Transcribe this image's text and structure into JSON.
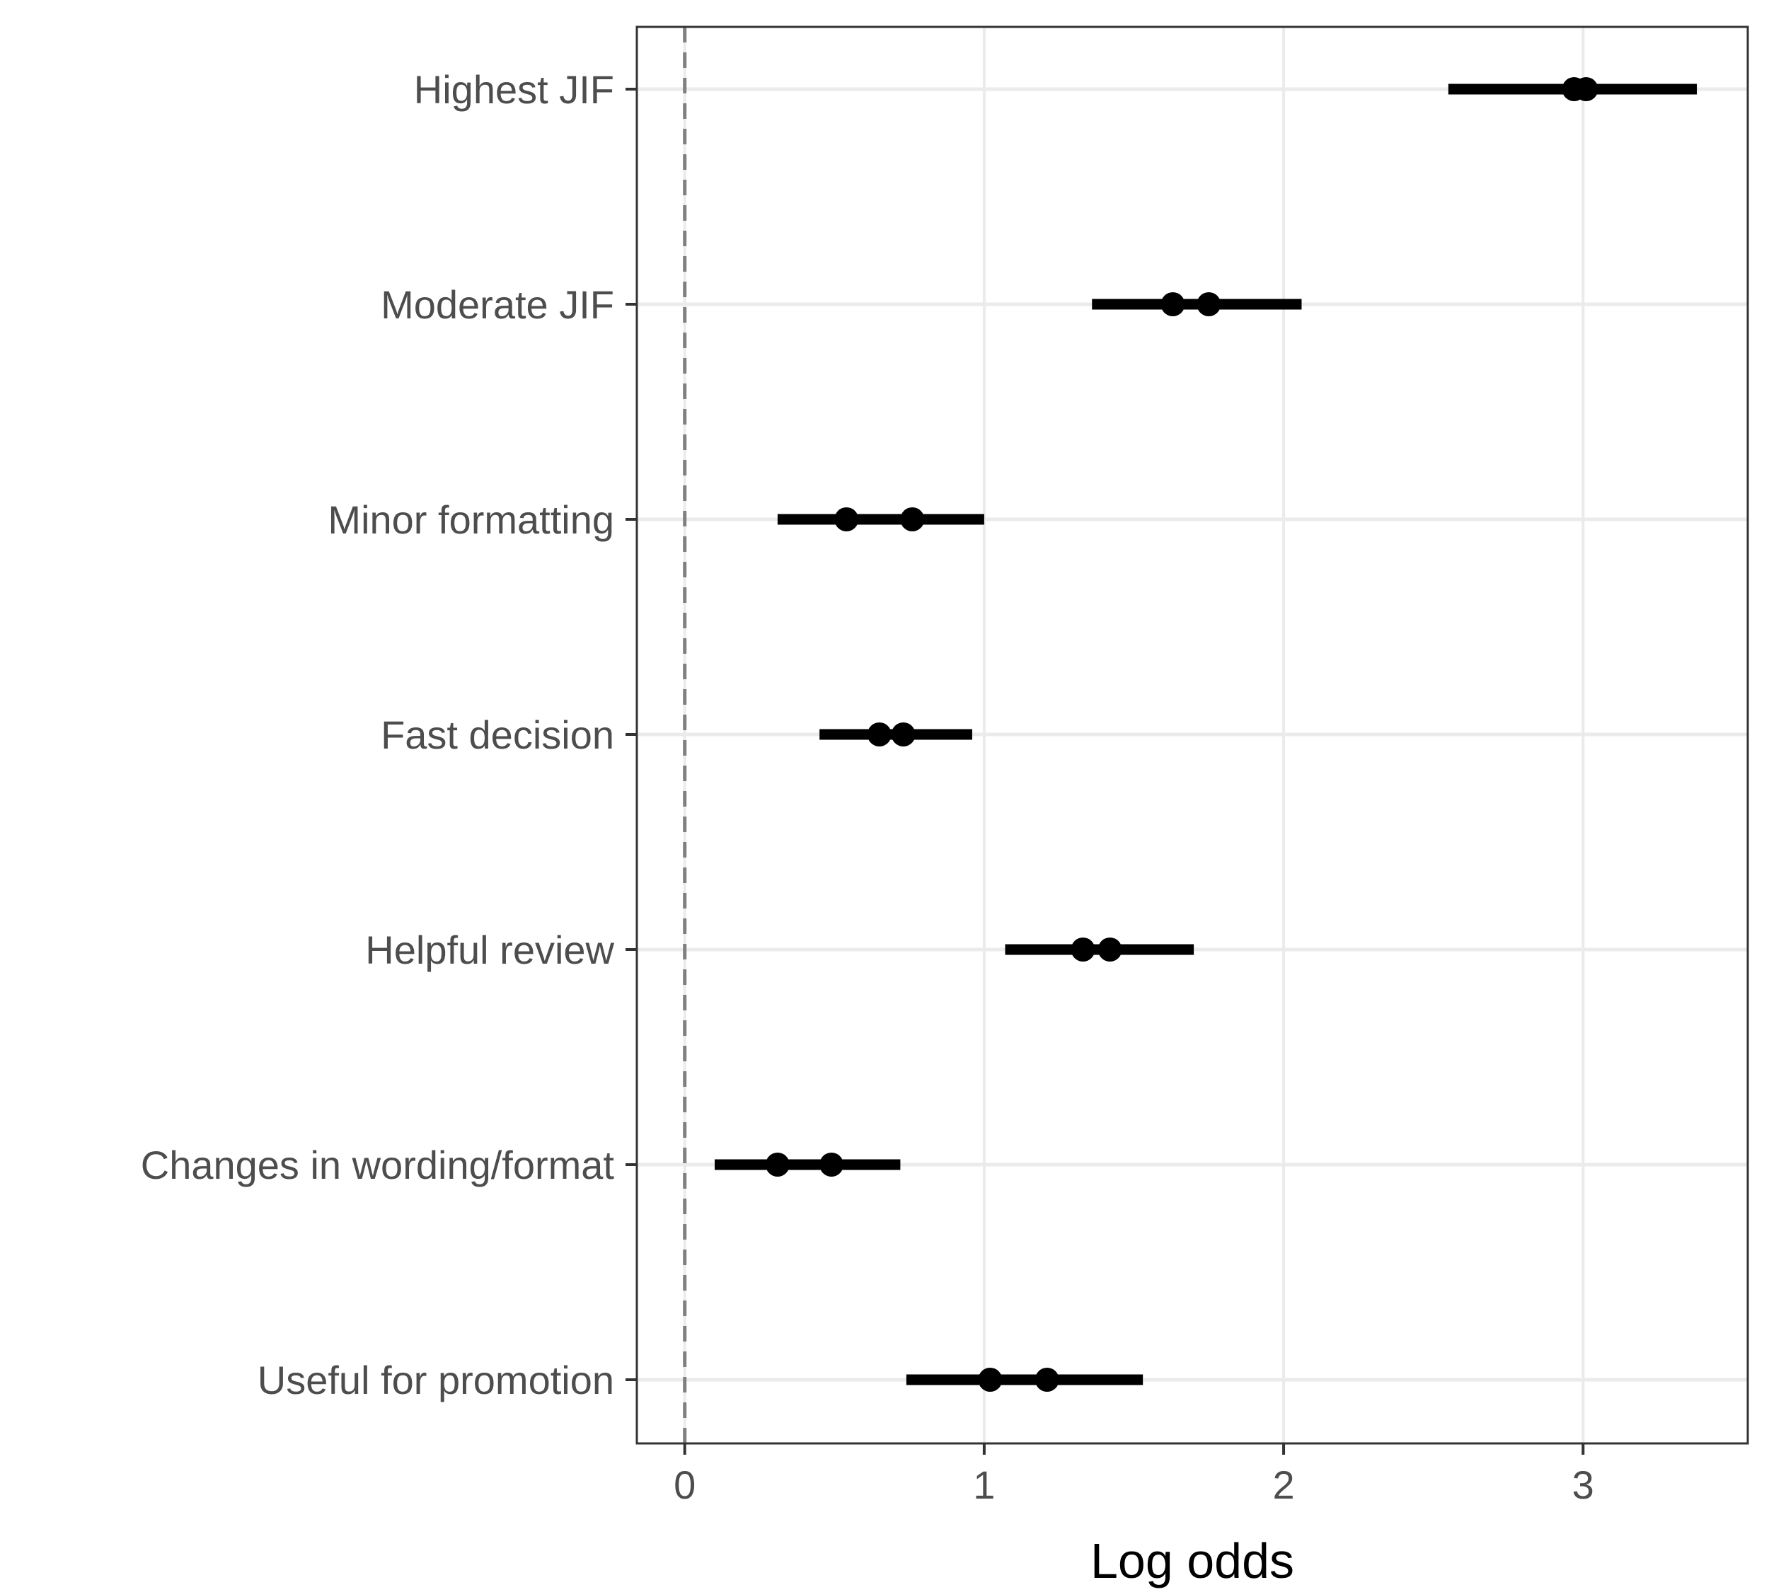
{
  "chart_data": {
    "type": "scatter",
    "xlabel": "Log odds",
    "ylabel": "",
    "xlim": [
      -0.16,
      3.55
    ],
    "x_ticks": [
      "0",
      "1",
      "2",
      "3"
    ],
    "reference_line_x": 0,
    "grid": true,
    "categories": [
      "Highest JIF",
      "Moderate JIF",
      "Minor formatting",
      "Fast decision",
      "Helpful review",
      "Changes in wording/format",
      "Useful for promotion"
    ],
    "rows": [
      {
        "label": "Highest JIF",
        "ci": [
          2.55,
          3.38
        ],
        "points": [
          2.97,
          3.01
        ]
      },
      {
        "label": "Moderate JIF",
        "ci": [
          1.36,
          2.06
        ],
        "points": [
          1.63,
          1.75
        ]
      },
      {
        "label": "Minor formatting",
        "ci": [
          0.31,
          1.0
        ],
        "points": [
          0.54,
          0.76
        ]
      },
      {
        "label": "Fast decision",
        "ci": [
          0.45,
          0.96
        ],
        "points": [
          0.65,
          0.73
        ]
      },
      {
        "label": "Helpful review",
        "ci": [
          1.07,
          1.7
        ],
        "points": [
          1.33,
          1.42
        ]
      },
      {
        "label": "Changes in wording/format",
        "ci": [
          0.1,
          0.72
        ],
        "points": [
          0.31,
          0.49
        ]
      },
      {
        "label": "Useful for promotion",
        "ci": [
          0.74,
          1.53
        ],
        "points": [
          1.02,
          1.21
        ]
      }
    ],
    "colors": {
      "marks": "#000000",
      "grid": "#ebebeb",
      "panel_border": "#333333",
      "reference_line": "#808080",
      "axis_text": "#4d4d4d"
    }
  }
}
